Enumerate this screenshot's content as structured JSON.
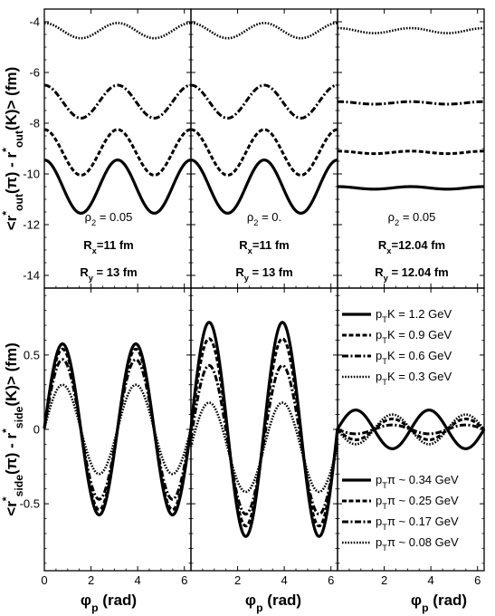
{
  "chart_data": {
    "type": "line",
    "ylabel_top": "<r*out(π) - r*out(K)> (fm)",
    "ylabel_top_parts": [
      "<r",
      "*",
      "out",
      "(π) - r",
      "*",
      "out",
      "(K)> (fm)"
    ],
    "ylabel_bottom_parts": [
      "<r",
      "*",
      "side",
      "(π) - r",
      "*",
      "side",
      "(K)> (fm)"
    ],
    "xlabel_parts": [
      "φ",
      "p",
      " (rad)"
    ],
    "xlim": [
      0,
      6.283
    ],
    "xticks": [
      "0",
      "2",
      "4",
      "6"
    ],
    "top_ylim": [
      -14.5,
      -3.5
    ],
    "top_yticks": [
      "-4",
      "-6",
      "-8",
      "-10",
      "-12",
      "-14"
    ],
    "bottom_ylim": [
      -0.95,
      0.95
    ],
    "bottom_yticks": [
      "0.5",
      "0",
      "-0.5"
    ],
    "line_styles": [
      "solid",
      "dashed",
      "dashdot",
      "dotted"
    ],
    "panels_top": [
      {
        "rho": "ρ₂ = 0.05",
        "rho_parts": [
          "ρ",
          "2",
          " = 0.05"
        ],
        "rx_parts": [
          "R",
          "x",
          "=11 fm"
        ],
        "ry_parts": [
          "R",
          "y",
          " = 13 fm"
        ],
        "series": [
          {
            "mean": -10.5,
            "amp": 1.05
          },
          {
            "mean": -9.15,
            "amp": 0.9
          },
          {
            "mean": -7.15,
            "amp": 0.65
          },
          {
            "mean": -4.35,
            "amp": 0.3
          }
        ]
      },
      {
        "rho": "ρ₂ = 0.",
        "rho_parts": [
          "ρ",
          "2",
          " = 0."
        ],
        "rx_parts": [
          "R",
          "x",
          "=11 fm"
        ],
        "ry_parts": [
          "R",
          "y",
          " = 13 fm"
        ],
        "series": [
          {
            "mean": -10.5,
            "amp": 1.05
          },
          {
            "mean": -9.15,
            "amp": 0.9
          },
          {
            "mean": -7.15,
            "amp": 0.65
          },
          {
            "mean": -4.35,
            "amp": 0.3
          }
        ]
      },
      {
        "rho": "ρ₂ = 0.05",
        "rho_parts": [
          "ρ",
          "2",
          " = 0.05"
        ],
        "rx_parts": [
          "R",
          "x",
          "=12.04 fm"
        ],
        "ry_parts": [
          "R",
          "y",
          " = 12.04 fm"
        ],
        "series": [
          {
            "mean": -10.55,
            "amp": 0.05
          },
          {
            "mean": -9.15,
            "amp": 0.05
          },
          {
            "mean": -7.2,
            "amp": 0.05
          },
          {
            "mean": -4.35,
            "amp": 0.1
          }
        ]
      }
    ],
    "panels_bottom": [
      {
        "series": [
          {
            "mean": 0.0,
            "amp": 0.575
          },
          {
            "mean": 0.0,
            "amp": 0.54
          },
          {
            "mean": 0.0,
            "amp": 0.47
          },
          {
            "mean": 0.0,
            "amp": 0.3
          }
        ]
      },
      {
        "series": [
          {
            "mean": 0.0,
            "amp": 0.72
          },
          {
            "mean": -0.02,
            "amp": 0.63
          },
          {
            "mean": -0.07,
            "amp": 0.5
          },
          {
            "mean": -0.12,
            "amp": 0.3
          }
        ]
      },
      {
        "series": [
          {
            "mean": 0.0,
            "amp": 0.13
          },
          {
            "mean": 0.0,
            "amp": -0.07
          },
          {
            "mean": 0.0,
            "amp": -0.03
          },
          {
            "mean": 0.0,
            "amp": -0.1
          }
        ]
      }
    ],
    "legend_kaon": [
      {
        "parts": [
          "p",
          "T",
          "K = 1.2 GeV"
        ]
      },
      {
        "parts": [
          "p",
          "T",
          "K = 0.9 GeV"
        ]
      },
      {
        "parts": [
          "p",
          "T",
          "K = 0.6 GeV"
        ]
      },
      {
        "parts": [
          "p",
          "T",
          "K = 0.3 GeV"
        ]
      }
    ],
    "legend_pion": [
      {
        "parts": [
          "p",
          "T",
          "π ~ 0.34 GeV"
        ]
      },
      {
        "parts": [
          "p",
          "T",
          "π ~ 0.25 GeV"
        ]
      },
      {
        "parts": [
          "p",
          "T",
          "π ~ 0.17 GeV"
        ]
      },
      {
        "parts": [
          "p",
          "T",
          "π ~ 0.08 GeV"
        ]
      }
    ]
  }
}
